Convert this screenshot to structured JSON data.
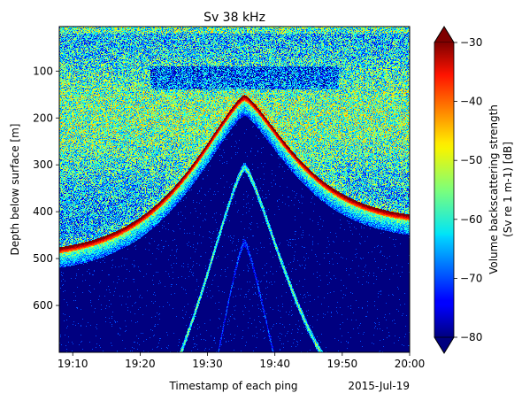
{
  "chart_data": {
    "type": "heatmap",
    "title": "Sv 38 kHz",
    "xlabel": "Timestamp of each ping",
    "x_offset_label": "2015-Jul-19",
    "ylabel": "Depth below surface [m]",
    "x_range": [
      "19:08",
      "20:00"
    ],
    "x_ticks": [
      "19:10",
      "19:20",
      "19:30",
      "19:40",
      "19:50",
      "20:00"
    ],
    "y_range": [
      5,
      700
    ],
    "y_inverted": true,
    "y_ticks": [
      100,
      200,
      300,
      400,
      500,
      600
    ],
    "colorbar": {
      "label_line1": "Volume backscattering strength",
      "label_line2": "(Sv re 1 m-1) [dB]",
      "range": [
        -80,
        -30
      ],
      "ticks": [
        -30,
        -40,
        -50,
        -60,
        -70,
        -80
      ],
      "colormap": "jet",
      "extend": "both"
    },
    "features": {
      "seafloor_echo": {
        "peak_time": "19:35:30",
        "peak_depth_m": 155,
        "depth_at_start_m": 480,
        "depth_at_end_m": 410,
        "level_db": -30
      },
      "second_bottom_echo": {
        "peak_time": "19:35:30",
        "peak_depth_m": 305,
        "level_db": -55
      },
      "third_bottom_echo": {
        "peak_time": "19:35:30",
        "peak_depth_m": 465,
        "level_db": -70
      },
      "background_level_db": -80
    }
  }
}
